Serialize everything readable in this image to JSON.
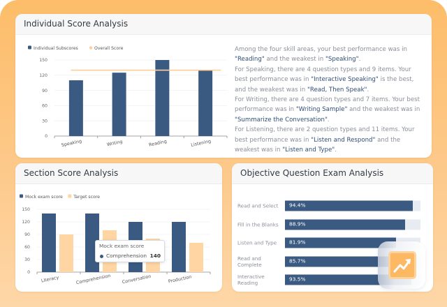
{
  "colors": {
    "primary": "#3b5a82",
    "secondary": "#fed5a3",
    "overall_line": "#fdcf98",
    "frame": "#fdbd6a"
  },
  "individual": {
    "title": "Individual Score Analysis",
    "summary": [
      [
        "Among the four skill areas, your best performance was in ",
        {
          "hl": "\"Reading\""
        },
        " and the weakest in ",
        {
          "hl": "\"Speaking\""
        },
        "."
      ],
      [
        "For Speaking, there are 4 question types and 9 items. Your best performance was in ",
        {
          "hl": "\"Interactive Speaking\""
        },
        " is the best, and the weakest was in ",
        {
          "hl": "\"Read, Then Speak\""
        },
        "."
      ],
      [
        "For Writing, there are 4 question types and 7 items. Your best performance was in ",
        {
          "hl": "\"Writing Sample\""
        },
        " and the weakest was in ",
        {
          "hl": "\"Summarize the Conversation\""
        },
        "."
      ],
      [
        "For Listening, there are 2 question types and 11 items. Your best performance was in ",
        {
          "hl": "\"Listen and Respond\""
        },
        " and the weakest was in ",
        {
          "hl": "\"Listen and Type\""
        },
        "."
      ]
    ]
  },
  "section": {
    "title": "Section Score Analysis",
    "tooltip": {
      "title": "Mock exam score",
      "label": "Comprehension",
      "value": "140"
    }
  },
  "objective": {
    "title": "Objective Question Exam Analysis",
    "items": [
      {
        "label": "Read and Select",
        "value": 94.4,
        "text": "94.4%"
      },
      {
        "label": "Fill in the Blanks",
        "value": 88.9,
        "text": "88.9%"
      },
      {
        "label": "Listen and Type",
        "value": 81.9,
        "text": "81.9%"
      },
      {
        "label": "Read and Complete",
        "value": 85.7,
        "text": "85.7%"
      },
      {
        "label": "Interactive Reading",
        "value": 93.5,
        "text": "93.5%"
      }
    ]
  },
  "badge": {
    "icon": "trending-up-icon"
  },
  "chart_data": [
    {
      "type": "bar",
      "title": "",
      "categories": [
        "Speaking",
        "Writing",
        "Reading",
        "Listening"
      ],
      "series": [
        {
          "name": "Individual Subscores",
          "values": [
            110,
            125,
            150,
            130
          ],
          "kind": "bar"
        },
        {
          "name": "Overall Score",
          "values": [
            130,
            130,
            130,
            130
          ],
          "kind": "line"
        }
      ],
      "yticks": [
        "0",
        "30",
        "60",
        "90",
        "120",
        "150"
      ],
      "ylim": [
        0,
        150
      ],
      "xlabel": "",
      "ylabel": "",
      "grid": true,
      "legend": "top-left"
    },
    {
      "type": "bar",
      "title": "",
      "categories": [
        "Literacy",
        "Comprehension",
        "Conversation",
        "Production"
      ],
      "series": [
        {
          "name": "Mock exam score",
          "values": [
            140,
            140,
            120,
            120
          ]
        },
        {
          "name": "Target score",
          "values": [
            90,
            100,
            80,
            70
          ]
        }
      ],
      "yticks": [
        "0",
        "30",
        "60",
        "90",
        "120",
        "150"
      ],
      "ylim": [
        0,
        150
      ],
      "xlabel": "",
      "ylabel": "",
      "grid": true,
      "legend": "top-left"
    }
  ]
}
